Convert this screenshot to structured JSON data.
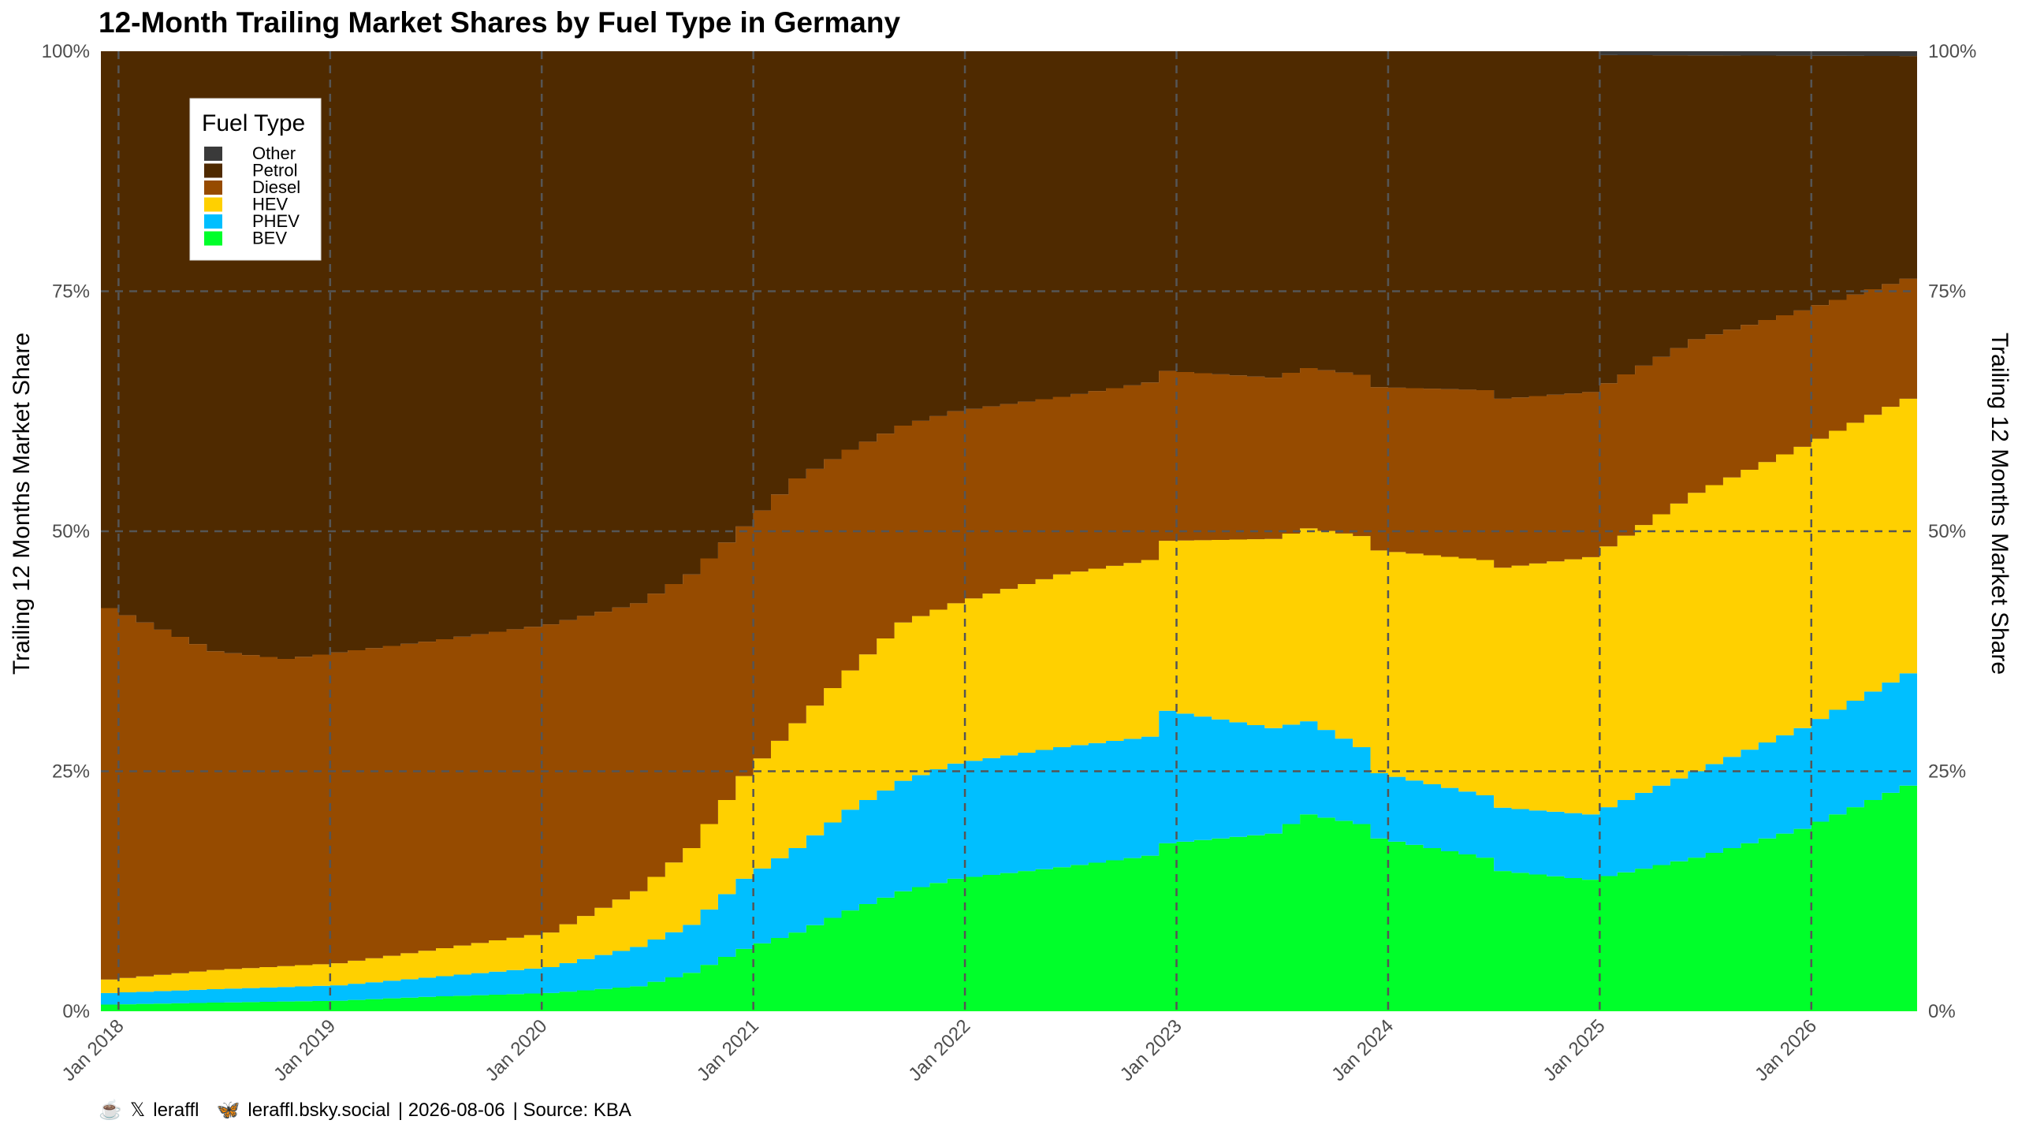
{
  "chart_data": {
    "type": "area",
    "title": "12-Month Trailing Market Shares by Fuel Type in Germany",
    "ylabel": "Trailing 12 Months Market Share",
    "ylabel_right": "Trailing 12 Months Market Share",
    "ylim": [
      0,
      100
    ],
    "y_ticks": [
      "0%",
      "25%",
      "50%",
      "75%",
      "100%"
    ],
    "x_ticks": [
      "Jan 2018",
      "Jan 2019",
      "Jan 2020",
      "Jan 2021",
      "Jan 2022",
      "Jan 2023",
      "Jan 2024",
      "Jan 2025",
      "Jan 2026"
    ],
    "x_start": "2017-12",
    "x_end": "2026-07",
    "grid": true,
    "legend_title": "Fuel Type",
    "legend_position": "top-left",
    "series": [
      {
        "name": "BEV",
        "color": "#00ff2a",
        "points": [
          [
            "2017-12",
            0.7
          ],
          [
            "2018-06",
            0.9
          ],
          [
            "2019-01",
            1.1
          ],
          [
            "2019-06",
            1.5
          ],
          [
            "2020-01",
            1.9
          ],
          [
            "2020-06",
            2.6
          ],
          [
            "2020-09",
            4.0
          ],
          [
            "2020-12",
            6.5
          ],
          [
            "2021-03",
            8.2
          ],
          [
            "2021-06",
            10.5
          ],
          [
            "2021-09",
            12.5
          ],
          [
            "2021-12",
            13.8
          ],
          [
            "2022-06",
            15.0
          ],
          [
            "2022-11",
            16.2
          ],
          [
            "2022-12",
            17.5
          ],
          [
            "2023-06",
            18.5
          ],
          [
            "2023-08",
            20.5
          ],
          [
            "2023-11",
            19.5
          ],
          [
            "2023-12",
            18.0
          ],
          [
            "2024-06",
            16.0
          ],
          [
            "2024-07",
            14.6
          ],
          [
            "2024-12",
            13.7
          ],
          [
            "2025-06",
            16.0
          ],
          [
            "2025-12",
            19.0
          ],
          [
            "2026-06",
            23.5
          ]
        ]
      },
      {
        "name": "PHEV",
        "color": "#00bfff",
        "points": [
          [
            "2017-12",
            1.9
          ],
          [
            "2018-06",
            2.3
          ],
          [
            "2019-01",
            2.7
          ],
          [
            "2019-06",
            3.5
          ],
          [
            "2020-01",
            4.6
          ],
          [
            "2020-06",
            6.7
          ],
          [
            "2020-09",
            9.0
          ],
          [
            "2020-12",
            13.8
          ],
          [
            "2021-03",
            17.0
          ],
          [
            "2021-06",
            21.0
          ],
          [
            "2021-09",
            24.0
          ],
          [
            "2021-12",
            25.8
          ],
          [
            "2022-06",
            27.5
          ],
          [
            "2022-11",
            28.6
          ],
          [
            "2022-12",
            31.3
          ],
          [
            "2023-06",
            29.5
          ],
          [
            "2023-08",
            30.2
          ],
          [
            "2023-11",
            27.5
          ],
          [
            "2023-12",
            24.8
          ],
          [
            "2024-06",
            22.5
          ],
          [
            "2024-07",
            21.2
          ],
          [
            "2024-12",
            20.5
          ],
          [
            "2025-06",
            25.0
          ],
          [
            "2025-12",
            29.5
          ],
          [
            "2026-06",
            35.2
          ]
        ]
      },
      {
        "name": "HEV",
        "color": "#ffd000",
        "points": [
          [
            "2017-12",
            3.3
          ],
          [
            "2018-06",
            4.3
          ],
          [
            "2019-01",
            5.0
          ],
          [
            "2019-06",
            6.3
          ],
          [
            "2020-01",
            8.2
          ],
          [
            "2020-06",
            12.5
          ],
          [
            "2020-09",
            17.0
          ],
          [
            "2020-12",
            24.5
          ],
          [
            "2021-03",
            30.0
          ],
          [
            "2021-06",
            35.5
          ],
          [
            "2021-09",
            40.5
          ],
          [
            "2021-12",
            42.5
          ],
          [
            "2022-06",
            45.5
          ],
          [
            "2022-11",
            47.0
          ],
          [
            "2022-12",
            49.0
          ],
          [
            "2023-06",
            49.2
          ],
          [
            "2023-08",
            50.3
          ],
          [
            "2023-11",
            49.5
          ],
          [
            "2023-12",
            48.0
          ],
          [
            "2024-06",
            47.0
          ],
          [
            "2024-07",
            46.2
          ],
          [
            "2024-12",
            47.3
          ],
          [
            "2025-06",
            54.0
          ],
          [
            "2025-12",
            58.8
          ],
          [
            "2026-06",
            63.8
          ]
        ]
      },
      {
        "name": "Diesel",
        "color": "#964b00",
        "points": [
          [
            "2017-12",
            42.0
          ],
          [
            "2018-06",
            37.5
          ],
          [
            "2018-10",
            36.7
          ],
          [
            "2019-06",
            38.5
          ],
          [
            "2020-01",
            40.3
          ],
          [
            "2020-06",
            42.5
          ],
          [
            "2020-09",
            45.5
          ],
          [
            "2020-12",
            50.5
          ],
          [
            "2021-03",
            55.5
          ],
          [
            "2021-06",
            58.5
          ],
          [
            "2021-09",
            61.0
          ],
          [
            "2021-12",
            62.5
          ],
          [
            "2022-06",
            64.0
          ],
          [
            "2022-11",
            65.5
          ],
          [
            "2022-12",
            66.7
          ],
          [
            "2023-06",
            66.0
          ],
          [
            "2023-08",
            67.0
          ],
          [
            "2023-11",
            66.3
          ],
          [
            "2023-12",
            65.0
          ],
          [
            "2024-06",
            64.7
          ],
          [
            "2024-07",
            63.8
          ],
          [
            "2024-12",
            64.5
          ],
          [
            "2025-06",
            70.0
          ],
          [
            "2025-12",
            73.0
          ],
          [
            "2026-06",
            76.3
          ]
        ]
      },
      {
        "name": "Petrol",
        "color": "#4f2a00",
        "points": [
          [
            "2017-12",
            100.0
          ],
          [
            "2024-12",
            100.0
          ],
          [
            "2025-01",
            99.6
          ],
          [
            "2026-06",
            99.5
          ]
        ]
      },
      {
        "name": "Other",
        "color": "#3a3a3a",
        "points": [
          [
            "2017-12",
            100.0
          ],
          [
            "2026-06",
            100.0
          ]
        ]
      }
    ]
  },
  "caption": {
    "handle": "leraffl",
    "bsky": "leraffl.bsky.social",
    "date_sep": "| 2026-08-06",
    "source": "| Source: KBA"
  }
}
